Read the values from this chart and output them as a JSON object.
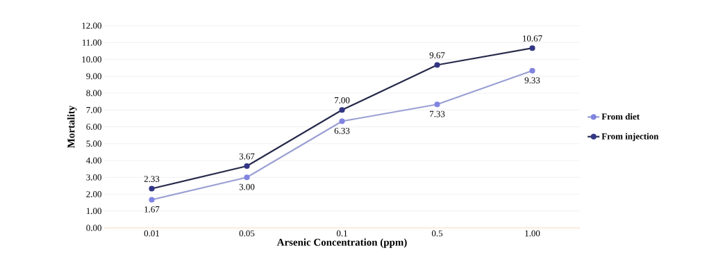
{
  "chart_data": {
    "type": "line",
    "xlabel": "Arsenic Concentration (ppm)",
    "ylabel": "Mortality",
    "categories": [
      "0.01",
      "0.05",
      "0.1",
      "0.5",
      "1.00"
    ],
    "series": [
      {
        "name": "From diet",
        "color": "#9a9fd3",
        "values": [
          1.67,
          3.0,
          6.33,
          7.33,
          9.33
        ],
        "value_labels": [
          "1.67",
          "3.00",
          "6.33",
          "7.33",
          "9.33"
        ]
      },
      {
        "name": "From injection",
        "color": "#262a4a",
        "values": [
          2.33,
          3.67,
          7.0,
          9.67,
          10.67
        ],
        "value_labels": [
          "2.33",
          "3.67",
          "7.00",
          "9.67",
          "10.67"
        ]
      }
    ],
    "ylim": [
      0,
      12
    ],
    "yticks": [
      {
        "value": 0,
        "label": "0.00"
      },
      {
        "value": 1,
        "label": "1.00"
      },
      {
        "value": 2,
        "label": "2.00"
      },
      {
        "value": 3,
        "label": "3.00"
      },
      {
        "value": 4,
        "label": "4.00"
      },
      {
        "value": 5,
        "label": "5.00"
      },
      {
        "value": 6,
        "label": "6.00"
      },
      {
        "value": 7,
        "label": "7.00"
      },
      {
        "value": 8,
        "label": "8.00"
      },
      {
        "value": 9,
        "label": "9.00"
      },
      {
        "value": 10,
        "label": "10.00"
      },
      {
        "value": 11,
        "label": "11.00"
      },
      {
        "value": 12,
        "label": "12.00"
      }
    ],
    "grid": "y",
    "legend": "right",
    "marker": "circle",
    "line_style": "solid"
  }
}
